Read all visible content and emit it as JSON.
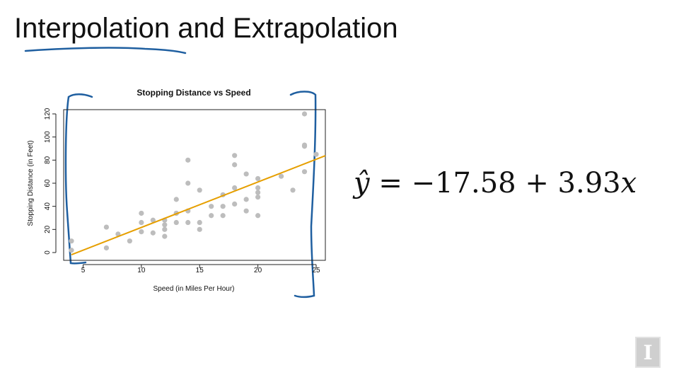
{
  "slide": {
    "title": "Interpolation and Extrapolation",
    "equation": {
      "yhat": "ŷ",
      "equals": "=",
      "intercept": "−17.58",
      "plus": "+",
      "slope": "3.93",
      "variable": "x"
    },
    "logo_letter": "I"
  },
  "colors": {
    "points": "#bdbdbd",
    "fit_line": "#e69f00",
    "ink": "#1f5fa0",
    "axis": "#222222"
  },
  "chart_data": {
    "type": "scatter",
    "title": "Stopping Distance vs Speed",
    "xlabel": "Speed (in Miles Per Hour)",
    "ylabel": "Stopping Distance (in Feet)",
    "xlim": [
      4,
      25
    ],
    "ylim": [
      0,
      120
    ],
    "xticks": [
      5,
      10,
      15,
      20,
      25
    ],
    "yticks": [
      0,
      20,
      40,
      60,
      80,
      100,
      120
    ],
    "grid": false,
    "x": [
      4,
      4,
      7,
      7,
      8,
      9,
      10,
      10,
      10,
      11,
      11,
      12,
      12,
      12,
      12,
      13,
      13,
      13,
      13,
      14,
      14,
      14,
      14,
      15,
      15,
      15,
      16,
      16,
      17,
      17,
      17,
      18,
      18,
      18,
      18,
      19,
      19,
      19,
      20,
      20,
      20,
      20,
      20,
      22,
      23,
      24,
      24,
      24,
      24,
      25
    ],
    "y": [
      2,
      10,
      4,
      22,
      16,
      10,
      18,
      26,
      34,
      17,
      28,
      14,
      20,
      24,
      28,
      26,
      34,
      34,
      46,
      26,
      36,
      60,
      80,
      20,
      26,
      54,
      32,
      40,
      32,
      40,
      50,
      42,
      56,
      76,
      84,
      36,
      46,
      68,
      32,
      48,
      52,
      56,
      64,
      66,
      54,
      70,
      92,
      93,
      120,
      85
    ],
    "fit_line": {
      "intercept": -17.58,
      "slope": 3.93
    }
  }
}
